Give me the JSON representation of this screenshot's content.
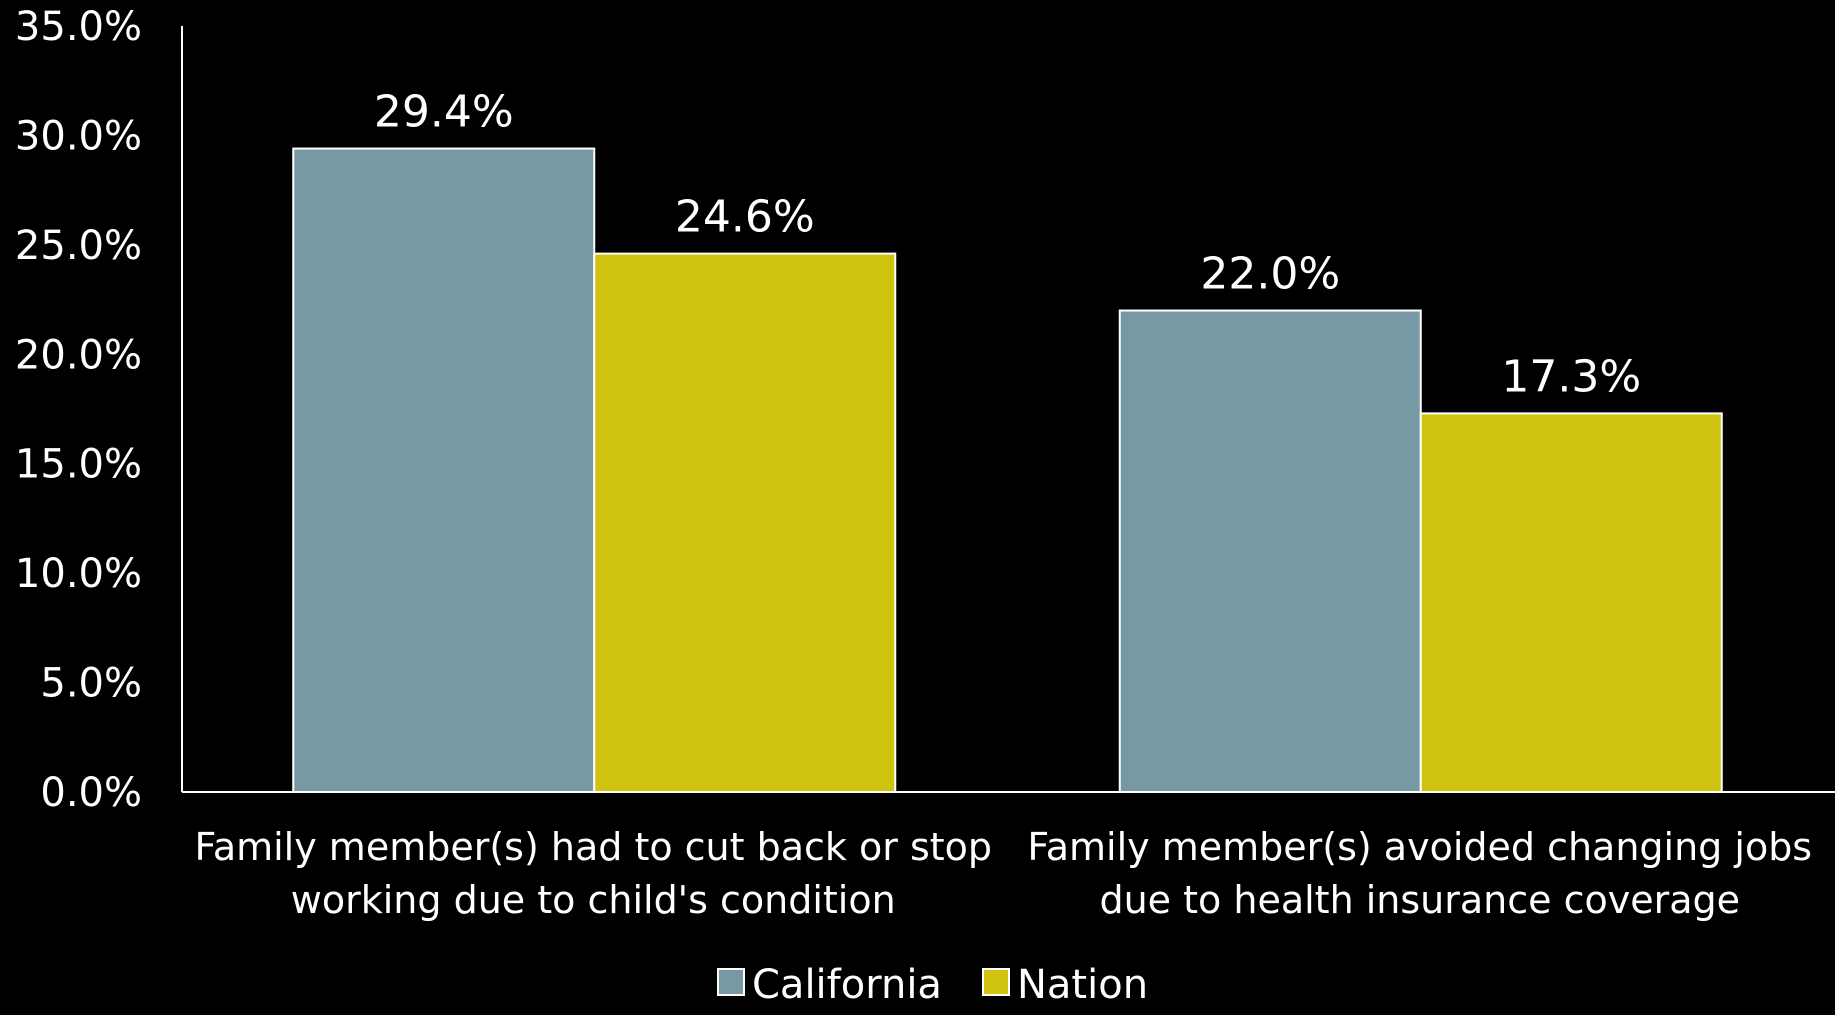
{
  "chart_data": {
    "type": "bar",
    "categories": [
      [
        "Family member(s) had to cut back or stop",
        "working due to child's condition"
      ],
      [
        "Family member(s) avoided changing jobs",
        "due to health insurance coverage"
      ]
    ],
    "series": [
      {
        "name": "California",
        "values": [
          29.4,
          22.0
        ],
        "labels": [
          "29.4%",
          "22.0%"
        ],
        "color": "#7799a5"
      },
      {
        "name": "Nation",
        "values": [
          24.6,
          17.3
        ],
        "labels": [
          "24.6%",
          "17.3%"
        ],
        "color": "#d0c30f"
      }
    ],
    "yticks": [
      "0.0%",
      "5.0%",
      "10.0%",
      "15.0%",
      "20.0%",
      "25.0%",
      "30.0%",
      "35.0%"
    ],
    "ylim": [
      0,
      35
    ],
    "ytick_step": 5,
    "grid": false,
    "legend": "bottom-center",
    "title": "",
    "xlabel": "",
    "ylabel": ""
  }
}
